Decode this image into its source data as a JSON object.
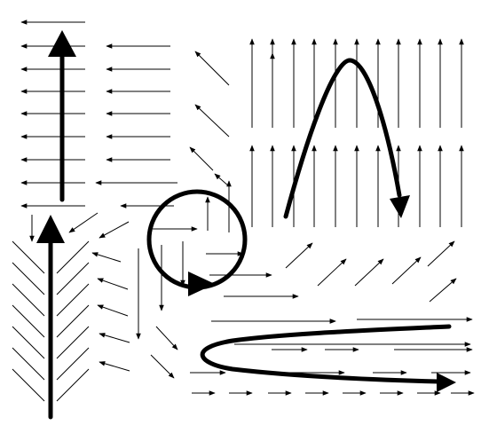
{
  "diagram": {
    "type": "vector-field-flow-illustration",
    "colors": {
      "arrows": "#000000",
      "background": "#ffffff"
    },
    "panels": [
      {
        "id": "uniform-left-field",
        "field_direction": "left",
        "trajectory": "straight-up"
      },
      {
        "id": "converging-chevron-field",
        "field_direction": "converging-upward",
        "trajectory": "straight-up"
      },
      {
        "id": "rotational-field",
        "field_direction": "circulating",
        "trajectory": "loop"
      },
      {
        "id": "uniform-up-field",
        "field_direction": "up",
        "trajectory": "parabolic-arc"
      },
      {
        "id": "right-flow-field",
        "field_direction": "right",
        "trajectory": "hairpin-turn"
      }
    ]
  }
}
